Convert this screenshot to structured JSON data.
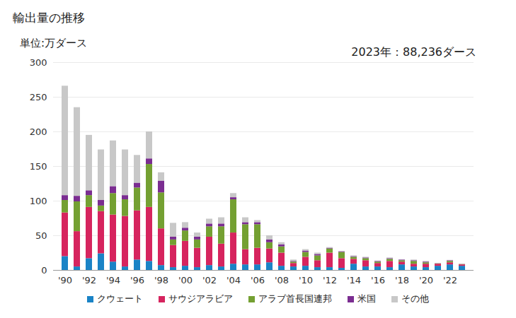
{
  "chart_data": {
    "type": "bar",
    "title": "輸出量の推移",
    "subtitle": "単位:万ダース",
    "annotation": "2023年：88,236ダース",
    "stacked": true,
    "grid": true,
    "legend": "bottom",
    "categories": [
      "'90",
      null,
      "'92",
      null,
      "'94",
      null,
      "'96",
      null,
      "'98",
      null,
      "'00",
      null,
      "'02",
      null,
      "'04",
      null,
      "'06",
      null,
      "'08",
      null,
      "'10",
      null,
      "'12",
      null,
      "'14",
      null,
      "'16",
      null,
      "'18",
      null,
      "'20",
      null,
      "'22",
      null
    ],
    "ylim": [
      0,
      300
    ],
    "yticks": [
      0,
      50,
      100,
      150,
      200,
      250,
      300
    ],
    "series": [
      {
        "name": "クウェート",
        "color": "#1a83c6",
        "values": [
          20,
          5,
          17,
          24,
          12,
          5,
          15,
          13,
          7,
          4,
          6,
          4,
          7,
          5,
          9,
          8,
          8,
          11,
          6,
          5,
          6,
          4,
          4,
          3,
          9,
          5,
          5,
          4,
          8,
          5,
          4,
          6,
          8,
          6
        ]
      },
      {
        "name": "サウジアラビア",
        "color": "#d6245e",
        "values": [
          63,
          51,
          74,
          61,
          68,
          73,
          71,
          78,
          53,
          32,
          36,
          28,
          41,
          33,
          45,
          22,
          24,
          20,
          19,
          5,
          13,
          10,
          21,
          14,
          7,
          9,
          5,
          9,
          4,
          4,
          5,
          3,
          3,
          2
        ]
      },
      {
        "name": "アラブ首長国連邦",
        "color": "#74a032",
        "values": [
          18,
          43,
          17,
          8,
          31,
          24,
          33,
          62,
          52,
          8,
          15,
          12,
          15,
          25,
          48,
          36,
          34,
          9,
          9,
          2,
          7,
          7,
          6,
          9,
          3,
          3,
          2,
          3,
          2,
          4,
          2,
          0.5,
          2,
          0.5
        ]
      },
      {
        "name": "米国",
        "color": "#7b2d91",
        "values": [
          7,
          8,
          7,
          8,
          10,
          6,
          7,
          8,
          17,
          4,
          4,
          4,
          4,
          4,
          3,
          3,
          3,
          4,
          3,
          1,
          2,
          2,
          1,
          1,
          1,
          1,
          1,
          1,
          1,
          1,
          1,
          0.3,
          1,
          0.2
        ]
      },
      {
        "name": "その他",
        "color": "#c8c8c8",
        "values": [
          158,
          128,
          80,
          73,
          66,
          66,
          40,
          39,
          12,
          20,
          8,
          6,
          7,
          9,
          6,
          7,
          3,
          6,
          3,
          2,
          2,
          2,
          1,
          0.5,
          1,
          1,
          0.5,
          1,
          0.5,
          1,
          1,
          0.2,
          0.5,
          0.1
        ]
      }
    ]
  }
}
